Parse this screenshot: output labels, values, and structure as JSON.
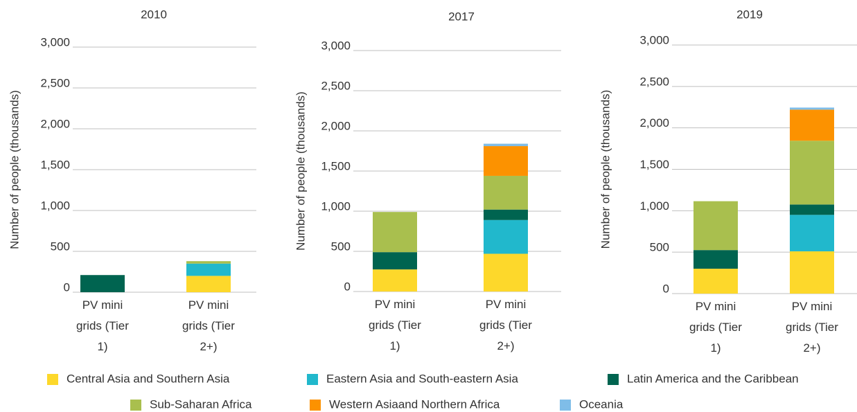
{
  "chart_data": [
    {
      "type": "bar",
      "stacked": true,
      "title": "2010",
      "ylabel": "Number of people (thousands)",
      "categories": [
        "PV mini grids (Tier 1)",
        "PV mini grids (Tier 2+)"
      ],
      "series": [
        {
          "values": [
            0,
            200
          ]
        },
        {
          "values": [
            0,
            150
          ]
        },
        {
          "values": [
            210,
            0
          ]
        },
        {
          "values": [
            0,
            30
          ]
        },
        {
          "values": [
            0,
            0
          ]
        },
        {
          "values": [
            0,
            0
          ]
        }
      ],
      "ylim": [
        0,
        3000
      ],
      "yticks": [
        0,
        500,
        {
          "value": 1000,
          "label": "1,000"
        },
        {
          "value": 1500,
          "label": "1,500"
        },
        {
          "value": 2000,
          "label": "2,000"
        },
        {
          "value": 2500,
          "label": "2,500"
        },
        {
          "value": 3000,
          "label": "3,000"
        }
      ],
      "grid": true
    },
    {
      "type": "bar",
      "stacked": true,
      "title": "2017",
      "ylabel": "Number of people (thousands)",
      "categories": [
        "PV mini grids (Tier 1)",
        "PV mini grids (Tier 2+)"
      ],
      "series": [
        {
          "values": [
            275,
            470
          ]
        },
        {
          "values": [
            0,
            420
          ]
        },
        {
          "values": [
            215,
            130
          ]
        },
        {
          "values": [
            500,
            420
          ]
        },
        {
          "values": [
            0,
            370
          ]
        },
        {
          "values": [
            0,
            30
          ]
        }
      ],
      "ylim": [
        0,
        3000
      ],
      "yticks": [
        0,
        500,
        {
          "value": 1000,
          "label": "1,000"
        },
        {
          "value": 1500,
          "label": "1,500"
        },
        {
          "value": 2000,
          "label": "2,000"
        },
        {
          "value": 2500,
          "label": "2,500"
        },
        {
          "value": 3000,
          "label": "3,000"
        }
      ],
      "grid": true
    },
    {
      "type": "bar",
      "stacked": true,
      "title": "2019",
      "ylabel": "Number of people (thousands)",
      "categories": [
        "PV mini grids (Tier 1)",
        "PV mini grids (Tier 2+)"
      ],
      "series": [
        {
          "values": [
            300,
            510
          ]
        },
        {
          "values": [
            0,
            440
          ]
        },
        {
          "values": [
            225,
            125
          ]
        },
        {
          "values": [
            590,
            770
          ]
        },
        {
          "values": [
            0,
            375
          ]
        },
        {
          "values": [
            0,
            25
          ]
        }
      ],
      "ylim": [
        0,
        3000
      ],
      "yticks": [
        0,
        500,
        {
          "value": 1000,
          "label": "1,000"
        },
        {
          "value": 1500,
          "label": "1,500"
        },
        {
          "value": 2000,
          "label": "2,000"
        },
        {
          "value": 2500,
          "label": "2,500"
        },
        {
          "value": 3000,
          "label": "3,000"
        }
      ],
      "grid": true
    }
  ],
  "legend": [
    {
      "name": "Central Asia and Southern Asia",
      "color": "#fdd82b"
    },
    {
      "name": "Eastern Asia and South-eastern Asia",
      "color": "#21b8cc"
    },
    {
      "name": "Latin America and the Caribbean",
      "color": "#006450"
    },
    {
      "name": "Sub-Saharan Africa",
      "color": "#a9bf4e"
    },
    {
      "name": "Western Asiaand Northern Africa",
      "color": "#fc9200"
    },
    {
      "name": "Oceania",
      "color": "#7fbde8"
    }
  ]
}
